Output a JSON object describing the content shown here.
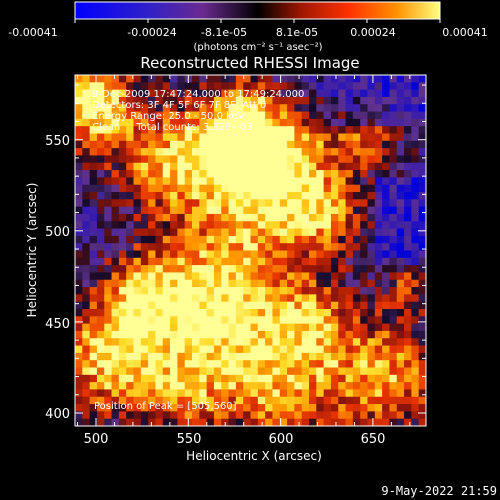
{
  "colorbar": {
    "tick_labels": [
      "-0.00041",
      "-0.00024",
      "-8.1e-05",
      "8.1e-05",
      "0.00024",
      "0.00041"
    ],
    "unit_label": "(photons cm⁻² s⁻¹ asec⁻²)",
    "range": [
      -0.00041,
      0.00041
    ]
  },
  "plot": {
    "title": "Reconstructed RHESSI Image",
    "xlabel": "Heliocentric X (arcsec)",
    "ylabel": "Heliocentric Y (arcsec)",
    "x_ticks": [
      "500",
      "550",
      "600",
      "650"
    ],
    "y_ticks": [
      "400",
      "450",
      "500",
      "550"
    ],
    "xlim": [
      490,
      680
    ],
    "ylim": [
      395,
      585
    ]
  },
  "annotations": {
    "time_range": "9-Dec-2009 17:47:24.000 to 17:49:24.000",
    "detectors": "Detectors: 3F 4F 5F 6F 7F 8F, Att 0",
    "energy": "Energy Range: 25.0 - 50.0 keV",
    "method": "Clean     Total counts: 3.32E+03",
    "peak": "Position of Peak = [505,560]"
  },
  "footer": {
    "timestamp": "9-May-2022 21:59"
  },
  "colors": {
    "background": "#000000",
    "axis": "#ffffff"
  }
}
